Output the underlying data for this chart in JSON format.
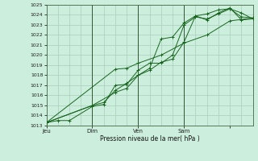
{
  "title": "Pression niveau de la mer( hPa )",
  "bg_color": "#cceedd",
  "grid_color": "#aaccbb",
  "line_color": "#1a6620",
  "ylim": [
    1013,
    1025
  ],
  "yticks": [
    1013,
    1014,
    1015,
    1016,
    1017,
    1018,
    1019,
    1020,
    1021,
    1022,
    1023,
    1024,
    1025
  ],
  "day_ticks": [
    0,
    24,
    48,
    72,
    96
  ],
  "day_labels": [
    "Jeu",
    "Dim",
    "Ven",
    "Sam",
    ""
  ],
  "day_lines": [
    24,
    48,
    72
  ],
  "xlim": [
    0,
    108
  ],
  "series": [
    [
      0,
      1013.3,
      6,
      1013.5,
      12,
      1013.5,
      24,
      1014.9,
      30,
      1015.1,
      36,
      1017.0,
      42,
      1017.1,
      48,
      1018.5,
      54,
      1019.2,
      60,
      1019.2,
      66,
      1020.0,
      72,
      1023.0,
      78,
      1023.8,
      84,
      1023.6,
      90,
      1024.1,
      96,
      1024.6,
      102,
      1024.2,
      108,
      1023.6
    ],
    [
      0,
      1013.3,
      24,
      1015.0,
      30,
      1015.3,
      36,
      1016.5,
      42,
      1017.2,
      48,
      1018.0,
      54,
      1018.5,
      60,
      1019.3,
      66,
      1019.6,
      72,
      1021.3,
      78,
      1023.9,
      84,
      1023.5,
      90,
      1024.2,
      96,
      1024.7,
      102,
      1023.5,
      108,
      1023.6
    ],
    [
      0,
      1013.3,
      24,
      1015.0,
      36,
      1016.3,
      42,
      1016.7,
      48,
      1018.0,
      54,
      1018.7,
      60,
      1021.6,
      66,
      1021.8,
      72,
      1023.2,
      78,
      1023.9,
      84,
      1024.1,
      90,
      1024.5,
      96,
      1024.6,
      102,
      1023.8,
      108,
      1023.7
    ],
    [
      0,
      1013.3,
      36,
      1018.6,
      42,
      1018.7,
      48,
      1019.2,
      60,
      1020.0,
      72,
      1021.2,
      84,
      1022.0,
      96,
      1023.4,
      108,
      1023.7
    ]
  ]
}
